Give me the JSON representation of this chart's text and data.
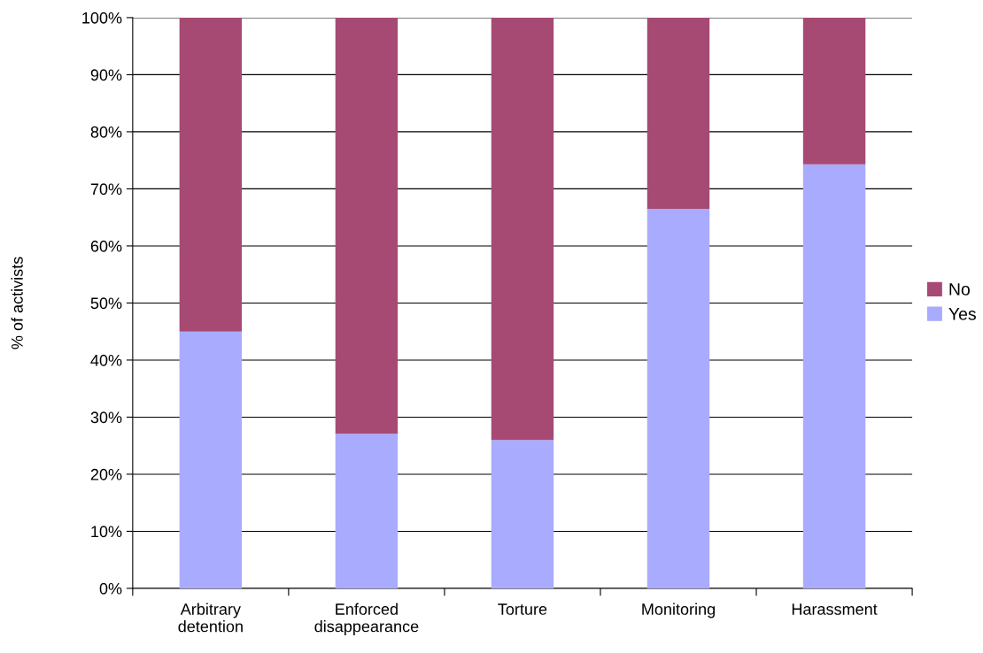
{
  "chart_data": {
    "type": "bar",
    "stacked": true,
    "ylabel": "% of activists",
    "categories": [
      "Arbitrary\ndetention",
      "Enforced\ndisappearance",
      "Torture",
      "Monitoring",
      "Harassment"
    ],
    "series": [
      {
        "name": "Yes",
        "color": "#a9abff",
        "values": [
          45,
          27.1,
          26,
          66.5,
          74.3
        ]
      },
      {
        "name": "No",
        "color": "#a64a74",
        "values": [
          55,
          72.9,
          74,
          33.5,
          25.7
        ]
      }
    ],
    "ylim": [
      0,
      100
    ],
    "yticks": [
      {
        "value": 0,
        "label": "0%"
      },
      {
        "value": 10,
        "label": "10%"
      },
      {
        "value": 20,
        "label": "20%"
      },
      {
        "value": 30,
        "label": "30%"
      },
      {
        "value": 40,
        "label": "40%"
      },
      {
        "value": 50,
        "label": "50%"
      },
      {
        "value": 60,
        "label": "60%"
      },
      {
        "value": 70,
        "label": "70%"
      },
      {
        "value": 80,
        "label": "80%"
      },
      {
        "value": 90,
        "label": "90%"
      },
      {
        "value": 100,
        "label": "100%"
      }
    ],
    "grid": "y",
    "legend": "right"
  }
}
